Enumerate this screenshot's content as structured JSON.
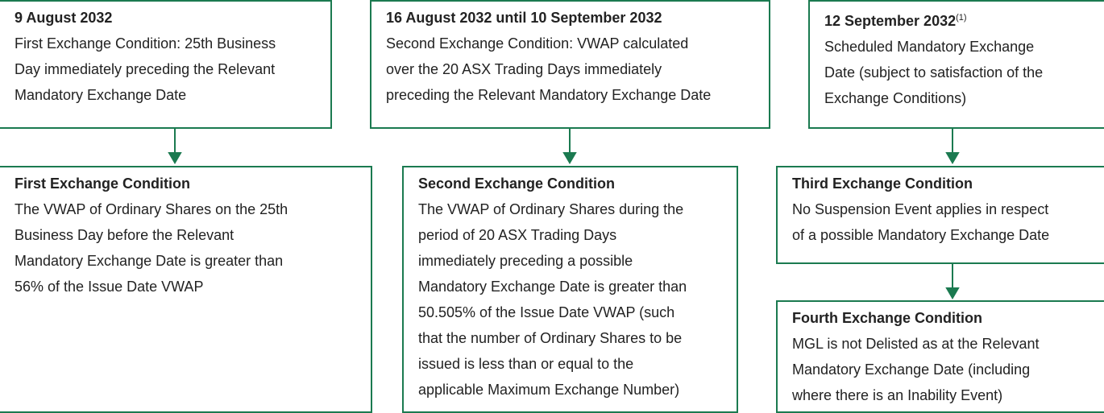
{
  "nodes": [
    {
      "title": "9 August 2032",
      "lines": [
        "First Exchange Condition: 25th Business",
        "Day immediately preceding the Relevant",
        "Mandatory Exchange Date"
      ]
    },
    {
      "title": "16 August 2032 until 10 September 2032",
      "lines": [
        "Second Exchange Condition: VWAP calculated",
        "over the 20 ASX Trading Days immediately",
        "preceding the Relevant Mandatory Exchange Date"
      ]
    },
    {
      "title": "12 September 2032",
      "title_note": "(1)",
      "lines": [
        "Scheduled Mandatory Exchange",
        "Date (subject to satisfaction of the",
        "Exchange Conditions)"
      ]
    },
    {
      "title": "First Exchange Condition",
      "lines": [
        "The VWAP of Ordinary Shares on the 25th",
        "Business Day before the Relevant",
        "Mandatory Exchange Date is greater than",
        "56% of the Issue Date VWAP"
      ]
    },
    {
      "title": "Second Exchange Condition",
      "lines": [
        "The VWAP of Ordinary Shares during the",
        "period of 20 ASX Trading Days",
        "immediately preceding a possible",
        "Mandatory Exchange Date is greater than",
        "50.505% of the Issue Date VWAP (such",
        "that the number of Ordinary Shares to be",
        "issued is less than or equal to the",
        "applicable Maximum Exchange Number)"
      ]
    },
    {
      "title": "Third Exchange Condition",
      "lines": [
        "No Suspension Event applies in respect",
        "of a possible Mandatory Exchange Date"
      ]
    },
    {
      "title": "Fourth Exchange Condition",
      "lines": [
        "MGL is not Delisted as at the Relevant",
        "Mandatory Exchange Date (including",
        "where there is an Inability Event)"
      ]
    }
  ]
}
